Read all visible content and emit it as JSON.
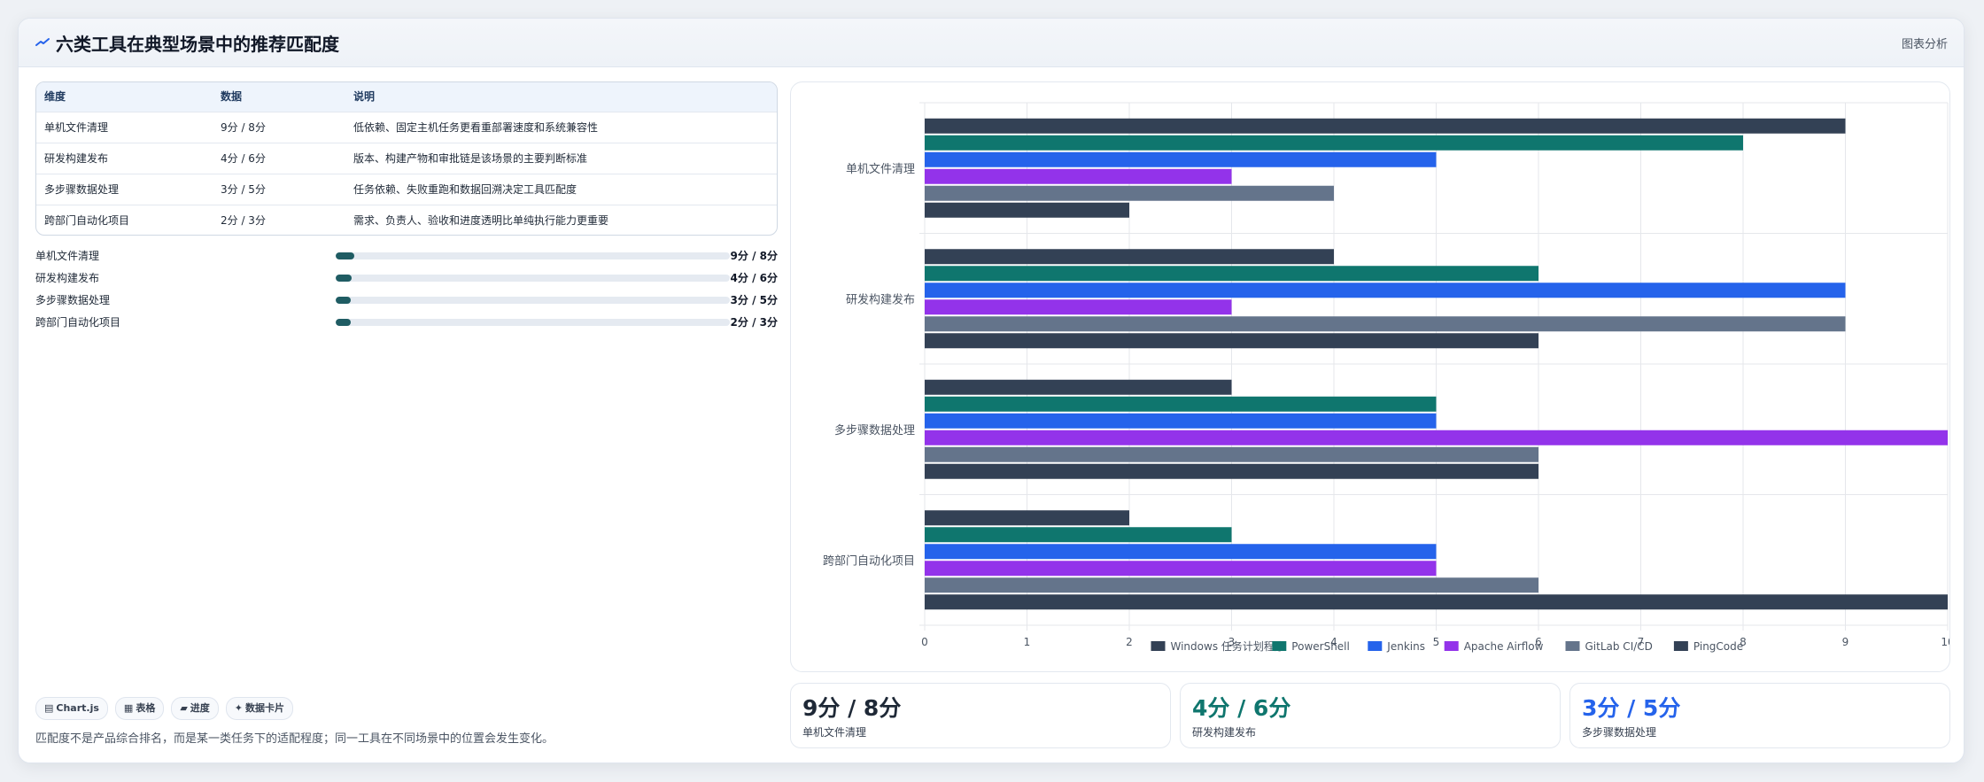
{
  "header": {
    "title": "六类工具在典型场景中的推荐匹配度",
    "action_label": "图表分析",
    "icon": "chart-trend-icon",
    "accent_color": "#2563eb"
  },
  "table": {
    "columns": [
      "维度",
      "数据",
      "说明"
    ],
    "rows": [
      {
        "dimension": "单机文件清理",
        "data": "9分 / 8分",
        "note": "低依赖、固定主机任务更看重部署速度和系统兼容性"
      },
      {
        "dimension": "研发构建发布",
        "data": "4分 / 6分",
        "note": "版本、构建产物和审批链是该场景的主要判断标准"
      },
      {
        "dimension": "多步骤数据处理",
        "data": "3分 / 5分",
        "note": "任务依赖、失败重跑和数据回溯决定工具匹配度"
      },
      {
        "dimension": "跨部门自动化项目",
        "data": "2分 / 3分",
        "note": "需求、负责人、验收和进度透明比单纯执行能力更重要"
      }
    ]
  },
  "progress": {
    "fill_color": "#1f5c63",
    "items": [
      {
        "label": "单机文件清理",
        "value": "9分 / 8分",
        "fraction": 0.047
      },
      {
        "label": "研发构建发布",
        "value": "4分 / 6分",
        "fraction": 0.041
      },
      {
        "label": "多步骤数据处理",
        "value": "3分 / 5分",
        "fraction": 0.039
      },
      {
        "label": "跨部门自动化项目",
        "value": "2分 / 3分",
        "fraction": 0.039
      }
    ]
  },
  "tags": [
    {
      "icon": "chart-icon",
      "glyph": "▤",
      "label": "Chart.js"
    },
    {
      "icon": "table-icon",
      "glyph": "▦",
      "label": "表格"
    },
    {
      "icon": "progress-icon",
      "glyph": "▰",
      "label": "进度"
    },
    {
      "icon": "card-icon",
      "glyph": "✦",
      "label": "数据卡片"
    }
  ],
  "footnote": "匹配度不是产品综合排名，而是某一类任务下的适配程度；同一工具在不同场景中的位置会发生变化。",
  "stats": [
    {
      "value": "9分 / 8分",
      "label": "单机文件清理",
      "color": "#1f2937"
    },
    {
      "value": "4分 / 6分",
      "label": "研发构建发布",
      "color": "#0f766e"
    },
    {
      "value": "3分 / 5分",
      "label": "多步骤数据处理",
      "color": "#2563eb"
    }
  ],
  "chart_data": {
    "type": "bar",
    "orientation": "horizontal",
    "categories": [
      "单机文件清理",
      "研发构建发布",
      "多步骤数据处理",
      "跨部门自动化项目"
    ],
    "series": [
      {
        "name": "Windows 任务计划程序",
        "color": "#334155",
        "values": [
          9,
          4,
          3,
          2
        ]
      },
      {
        "name": "PowerShell",
        "color": "#0f766e",
        "values": [
          8,
          6,
          5,
          3
        ]
      },
      {
        "name": "Jenkins",
        "color": "#2563eb",
        "values": [
          5,
          9,
          5,
          5
        ]
      },
      {
        "name": "Apache Airflow",
        "color": "#9333ea",
        "values": [
          3,
          3,
          10,
          5
        ]
      },
      {
        "name": "GitLab CI/CD",
        "color": "#64748b",
        "values": [
          4,
          9,
          6,
          6
        ]
      },
      {
        "name": "PingCode",
        "color": "#334155",
        "values": [
          2,
          6,
          6,
          10
        ]
      }
    ],
    "xlim": [
      0,
      10
    ],
    "x_ticks": [
      "0",
      "1",
      "2",
      "3",
      "4",
      "5",
      "6",
      "7",
      "8",
      "9",
      "10"
    ],
    "grid": true,
    "legend_position": "bottom"
  }
}
